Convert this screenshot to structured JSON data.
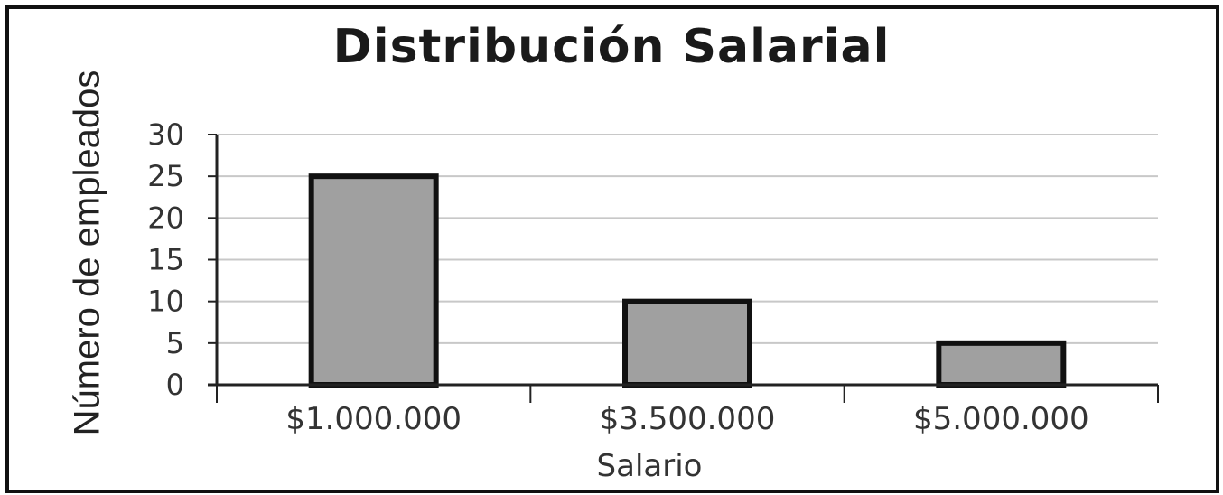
{
  "chart_data": {
    "type": "bar",
    "title": "Distribución Salarial",
    "xlabel": "Salario",
    "ylabel": "Número de empleados",
    "categories": [
      "$1.000.000",
      "$3.500.000",
      "$5.000.000"
    ],
    "values": [
      25,
      10,
      5
    ],
    "yticks": [
      "0",
      "5",
      "10",
      "15",
      "20",
      "25",
      "30"
    ],
    "ylim": [
      0,
      30
    ],
    "grid": true,
    "legend": "none",
    "colors": {
      "bar_fill": "#a0a0a0",
      "bar_stroke": "#111111",
      "grid": "#c8c8c8",
      "axis": "#222222"
    }
  }
}
